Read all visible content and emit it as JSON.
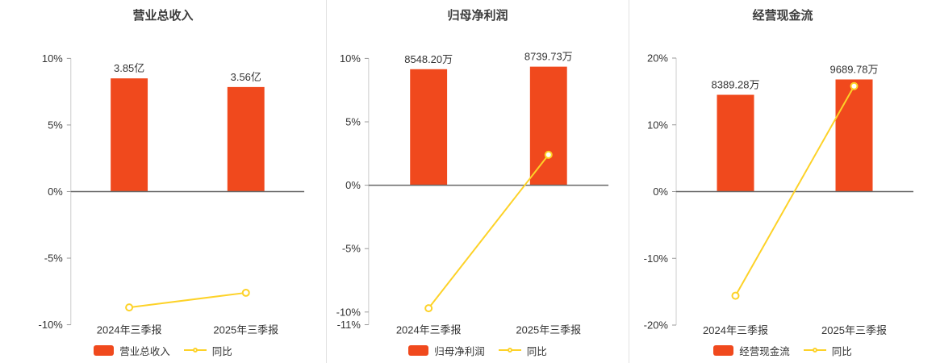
{
  "page": {
    "background": "#ffffff",
    "divider_color": "#e2e2e2"
  },
  "chart_data": [
    {
      "type": "bar+line",
      "title": "营业总收入",
      "categories": [
        "2024年三季报",
        "2025年三季报"
      ],
      "bars": {
        "name": "营业总收入",
        "value_labels": [
          "3.85亿",
          "3.56亿"
        ],
        "top_pct": [
          8.5,
          7.85
        ],
        "color": "#f0491d"
      },
      "line": {
        "name": "同比",
        "values_pct": [
          -8.7,
          -7.6
        ],
        "color": "#fdd228"
      },
      "ylim": [
        -10,
        10
      ],
      "y_ticks": [
        {
          "label": "10%",
          "value": 10
        },
        {
          "label": "5%",
          "value": 5
        },
        {
          "label": "0%",
          "value": 0
        },
        {
          "label": "-5%",
          "value": -5
        },
        {
          "label": "-10%",
          "value": -10
        }
      ],
      "legend": [
        "营业总收入",
        "同比"
      ],
      "legend_position": "bottom",
      "grid": false
    },
    {
      "type": "bar+line",
      "title": "归母净利润",
      "categories": [
        "2024年三季报",
        "2025年三季报"
      ],
      "bars": {
        "name": "归母净利润",
        "value_labels": [
          "8548.20万",
          "8739.73万"
        ],
        "top_pct": [
          9.15,
          9.35
        ],
        "color": "#f0491d"
      },
      "line": {
        "name": "同比",
        "values_pct": [
          -9.7,
          2.4
        ],
        "color": "#fdd228"
      },
      "ylim": [
        -11,
        10
      ],
      "y_ticks": [
        {
          "label": "10%",
          "value": 10
        },
        {
          "label": "5%",
          "value": 5
        },
        {
          "label": "0%",
          "value": 0
        },
        {
          "label": "-5%",
          "value": -5
        },
        {
          "label": "-10%",
          "value": -10
        },
        {
          "label": "-11%",
          "value": -11
        }
      ],
      "legend": [
        "归母净利润",
        "同比"
      ],
      "legend_position": "bottom",
      "grid": false
    },
    {
      "type": "bar+line",
      "title": "经营现金流",
      "categories": [
        "2024年三季报",
        "2025年三季报"
      ],
      "bars": {
        "name": "经营现金流",
        "value_labels": [
          "8389.28万",
          "9689.78万"
        ],
        "top_pct": [
          14.5,
          16.8
        ],
        "color": "#f0491d"
      },
      "line": {
        "name": "同比",
        "values_pct": [
          -15.6,
          15.8
        ],
        "color": "#fdd228"
      },
      "ylim": [
        -20,
        20
      ],
      "y_ticks": [
        {
          "label": "20%",
          "value": 20
        },
        {
          "label": "10%",
          "value": 10
        },
        {
          "label": "0%",
          "value": 0
        },
        {
          "label": "-10%",
          "value": -10
        },
        {
          "label": "-20%",
          "value": -20
        }
      ],
      "legend": [
        "经营现金流",
        "同比"
      ],
      "legend_position": "bottom",
      "grid": false
    }
  ]
}
